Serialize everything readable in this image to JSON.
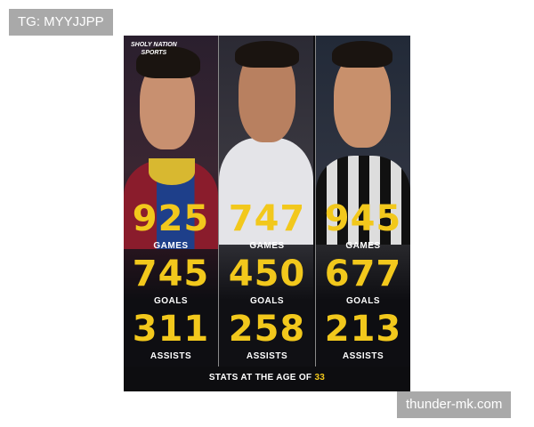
{
  "watermarks": {
    "top_left": "TG: MYYJJPP",
    "bottom_right": "thunder-mk.com"
  },
  "poster": {
    "brand": "SHOLY NATION SPORTS",
    "brand_line1": "SHOLY NATION",
    "brand_line2": "SPORTS",
    "players": [
      {
        "games": "925",
        "games_label": "GAMES",
        "goals": "745",
        "goals_label": "GOALS",
        "assists": "311",
        "assists_label": "ASSISTS"
      },
      {
        "games": "747",
        "games_label": "GAMES",
        "goals": "450",
        "goals_label": "GOALS",
        "assists": "258",
        "assists_label": "ASSISTS"
      },
      {
        "games": "945",
        "games_label": "GAMES",
        "goals": "677",
        "goals_label": "GOALS",
        "assists": "213",
        "assists_label": "ASSISTS"
      }
    ],
    "footer_text": "STATS AT THE AGE OF",
    "footer_age": "33"
  },
  "colors": {
    "accent": "#f2c81c",
    "background": "#0d0d10"
  }
}
